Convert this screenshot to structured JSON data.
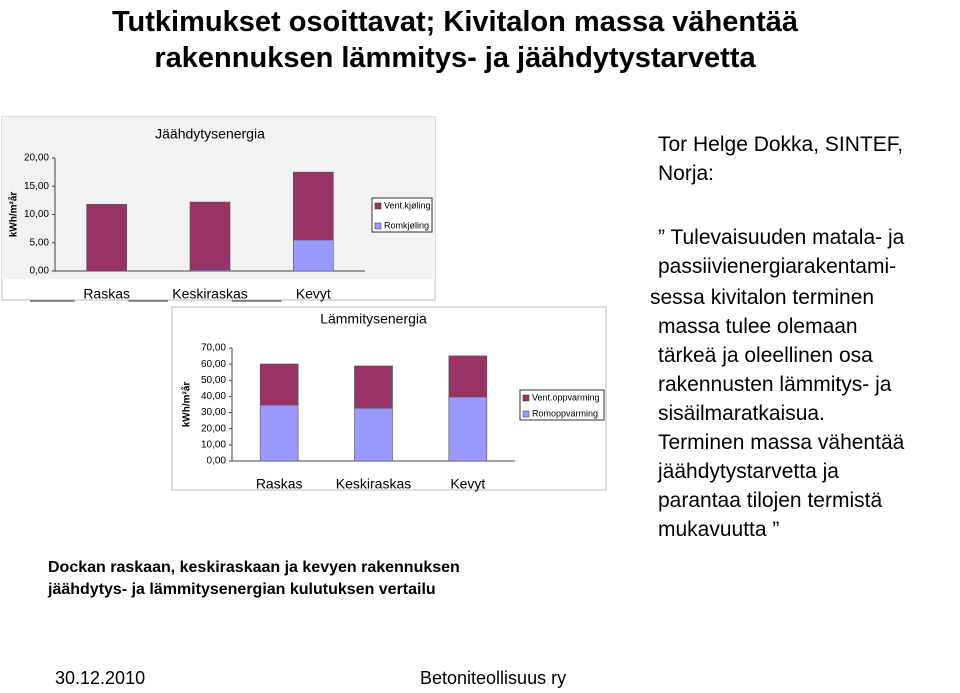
{
  "title": [
    "Tutkimukset osoittavat; Kivitalon massa vähentää",
    "rakennuksen lämmitys- ja jäähdytystarvetta"
  ],
  "chart_data": [
    {
      "type": "stacked-bar",
      "title": "Jäähdytysenergia",
      "y_label": "kWh/m²år",
      "categories": [
        "Raskas",
        "Keskiraskas",
        "Kevyt"
      ],
      "series": [
        {
          "name": "Vent.kjøling",
          "color": "#993366",
          "values": [
            11.8,
            12.0,
            12.0
          ]
        },
        {
          "name": "Romkjøling",
          "color": "#9999ff",
          "values": [
            0,
            0.2,
            5.5
          ]
        }
      ],
      "ylim": [
        0,
        20
      ],
      "yticks": [
        {
          "value": 0,
          "label": "0,00"
        },
        {
          "value": 5,
          "label": "5,00"
        },
        {
          "value": 10,
          "label": "10,00"
        },
        {
          "value": 15,
          "label": "15,00"
        },
        {
          "value": 20,
          "label": "20,00"
        }
      ]
    },
    {
      "type": "stacked-bar",
      "title": "Lämmitysenergia",
      "y_label": "kWh/m²år",
      "categories": [
        "Raskas",
        "Keskiraskas",
        "Kevyt"
      ],
      "series": [
        {
          "name": "Vent.oppvarming",
          "color": "#993366",
          "values": [
            25.4,
            26.1,
            25.4
          ]
        },
        {
          "name": "Romoppvarming",
          "color": "#9999ff",
          "values": [
            34.7,
            32.8,
            39.7
          ]
        }
      ],
      "ylim": [
        0,
        70
      ],
      "yticks": [
        {
          "value": 0,
          "label": "0,00"
        },
        {
          "value": 10,
          "label": "10,00"
        },
        {
          "value": 20,
          "label": "20,00"
        },
        {
          "value": 30,
          "label": "30,00"
        },
        {
          "value": 40,
          "label": "40,00"
        },
        {
          "value": 50,
          "label": "50,00"
        },
        {
          "value": 60,
          "label": "60,00"
        },
        {
          "value": 70,
          "label": "70,00"
        }
      ]
    }
  ],
  "caption": [
    "Dockan raskaan, keskiraskaan ja kevyen rakennuksen",
    "jäähdytys- ja lämmitysenergian kulutuksen vertailu"
  ],
  "author": [
    "Tor Helge Dokka, SINTEF,",
    "Norja:"
  ],
  "text": [
    "” Tulevaisuuden matala- ja",
    "passiivienergiarakentami-",
    "sessa kivitalon terminen",
    "massa tulee olemaan",
    "tärkeä ja oleellinen osa",
    "rakennusten lämmitys- ja",
    "sisäilmaratkaisua.",
    "Terminen massa vähentää",
    "jäähdytystarvetta ja",
    "parantaa tilojen termistä",
    "mukavuutta ”"
  ],
  "footer": {
    "date": "30.12.2010",
    "organization": "Betoniteollisuus ry"
  }
}
